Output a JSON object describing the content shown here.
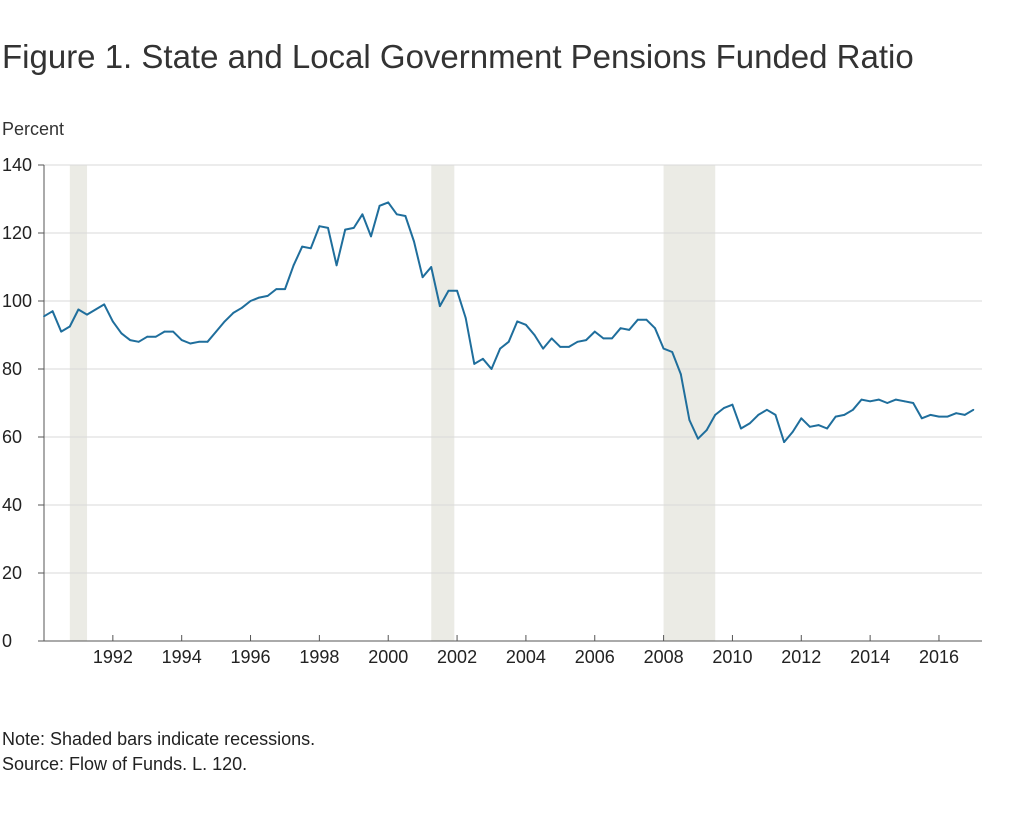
{
  "title": "Figure 1. State and Local Government Pensions Funded Ratio",
  "note": "Note: Shaded bars indicate recessions.",
  "source": "Source: Flow of Funds. L. 120.",
  "colors": {
    "line": "#1f6e9c",
    "recession": "#ebebe5",
    "grid": "#d9d9d9",
    "axis": "#555555"
  },
  "chart_data": {
    "type": "line",
    "title": "Figure 1. State and Local Government Pensions Funded Ratio",
    "ylabel": "Percent",
    "xlabel": "",
    "ylim": [
      0,
      140
    ],
    "xlim": [
      1990.0,
      2017.25
    ],
    "yticks": [
      0,
      20,
      40,
      60,
      80,
      100,
      120,
      140
    ],
    "xticks": [
      1992,
      1994,
      1996,
      1998,
      2000,
      2002,
      2004,
      2006,
      2008,
      2010,
      2012,
      2014,
      2016
    ],
    "grid": true,
    "legend": "none",
    "recessions": [
      [
        1990.75,
        1991.25
      ],
      [
        2001.25,
        2001.92
      ],
      [
        2008.0,
        2009.5
      ]
    ],
    "series": [
      {
        "values": [
          [
            1990.0,
            95.5
          ],
          [
            1990.25,
            97.0
          ],
          [
            1990.5,
            91.0
          ],
          [
            1990.75,
            92.5
          ],
          [
            1991.0,
            97.5
          ],
          [
            1991.25,
            96.0
          ],
          [
            1991.5,
            97.5
          ],
          [
            1991.75,
            99.0
          ],
          [
            1992.0,
            94.0
          ],
          [
            1992.25,
            90.5
          ],
          [
            1992.5,
            88.5
          ],
          [
            1992.75,
            88.0
          ],
          [
            1993.0,
            89.5
          ],
          [
            1993.25,
            89.5
          ],
          [
            1993.5,
            91.0
          ],
          [
            1993.75,
            91.0
          ],
          [
            1994.0,
            88.5
          ],
          [
            1994.25,
            87.5
          ],
          [
            1994.5,
            88.0
          ],
          [
            1994.75,
            88.0
          ],
          [
            1995.0,
            91.0
          ],
          [
            1995.25,
            94.0
          ],
          [
            1995.5,
            96.5
          ],
          [
            1995.75,
            98.0
          ],
          [
            1996.0,
            100.0
          ],
          [
            1996.25,
            101.0
          ],
          [
            1996.5,
            101.5
          ],
          [
            1996.75,
            103.5
          ],
          [
            1997.0,
            103.5
          ],
          [
            1997.25,
            110.5
          ],
          [
            1997.5,
            116.0
          ],
          [
            1997.75,
            115.5
          ],
          [
            1998.0,
            122.0
          ],
          [
            1998.25,
            121.5
          ],
          [
            1998.5,
            110.5
          ],
          [
            1998.75,
            121.0
          ],
          [
            1999.0,
            121.5
          ],
          [
            1999.25,
            125.5
          ],
          [
            1999.5,
            119.0
          ],
          [
            1999.75,
            128.0
          ],
          [
            2000.0,
            129.0
          ],
          [
            2000.25,
            125.5
          ],
          [
            2000.5,
            125.0
          ],
          [
            2000.75,
            117.5
          ],
          [
            2001.0,
            107.0
          ],
          [
            2001.25,
            110.0
          ],
          [
            2001.5,
            98.5
          ],
          [
            2001.75,
            103.0
          ],
          [
            2002.0,
            103.0
          ],
          [
            2002.25,
            95.0
          ],
          [
            2002.5,
            81.5
          ],
          [
            2002.75,
            83.0
          ],
          [
            2003.0,
            80.0
          ],
          [
            2003.25,
            86.0
          ],
          [
            2003.5,
            88.0
          ],
          [
            2003.75,
            94.0
          ],
          [
            2004.0,
            93.0
          ],
          [
            2004.25,
            90.0
          ],
          [
            2004.5,
            86.0
          ],
          [
            2004.75,
            89.0
          ],
          [
            2005.0,
            86.5
          ],
          [
            2005.25,
            86.5
          ],
          [
            2005.5,
            88.0
          ],
          [
            2005.75,
            88.5
          ],
          [
            2006.0,
            91.0
          ],
          [
            2006.25,
            89.0
          ],
          [
            2006.5,
            89.0
          ],
          [
            2006.75,
            92.0
          ],
          [
            2007.0,
            91.5
          ],
          [
            2007.25,
            94.5
          ],
          [
            2007.5,
            94.5
          ],
          [
            2007.75,
            92.0
          ],
          [
            2008.0,
            86.0
          ],
          [
            2008.25,
            85.0
          ],
          [
            2008.5,
            78.5
          ],
          [
            2008.75,
            65.0
          ],
          [
            2009.0,
            59.5
          ],
          [
            2009.25,
            62.0
          ],
          [
            2009.5,
            66.5
          ],
          [
            2009.75,
            68.5
          ],
          [
            2010.0,
            69.5
          ],
          [
            2010.25,
            62.5
          ],
          [
            2010.5,
            64.0
          ],
          [
            2010.75,
            66.5
          ],
          [
            2011.0,
            68.0
          ],
          [
            2011.25,
            66.5
          ],
          [
            2011.5,
            58.5
          ],
          [
            2011.75,
            61.5
          ],
          [
            2012.0,
            65.5
          ],
          [
            2012.25,
            63.0
          ],
          [
            2012.5,
            63.5
          ],
          [
            2012.75,
            62.5
          ],
          [
            2013.0,
            66.0
          ],
          [
            2013.25,
            66.5
          ],
          [
            2013.5,
            68.0
          ],
          [
            2013.75,
            71.0
          ],
          [
            2014.0,
            70.5
          ],
          [
            2014.25,
            71.0
          ],
          [
            2014.5,
            70.0
          ],
          [
            2014.75,
            71.0
          ],
          [
            2015.0,
            70.5
          ],
          [
            2015.25,
            70.0
          ],
          [
            2015.5,
            65.5
          ],
          [
            2015.75,
            66.5
          ],
          [
            2016.0,
            66.0
          ],
          [
            2016.25,
            66.0
          ],
          [
            2016.5,
            67.0
          ],
          [
            2016.75,
            66.5
          ],
          [
            2017.0,
            68.0
          ]
        ]
      }
    ]
  }
}
